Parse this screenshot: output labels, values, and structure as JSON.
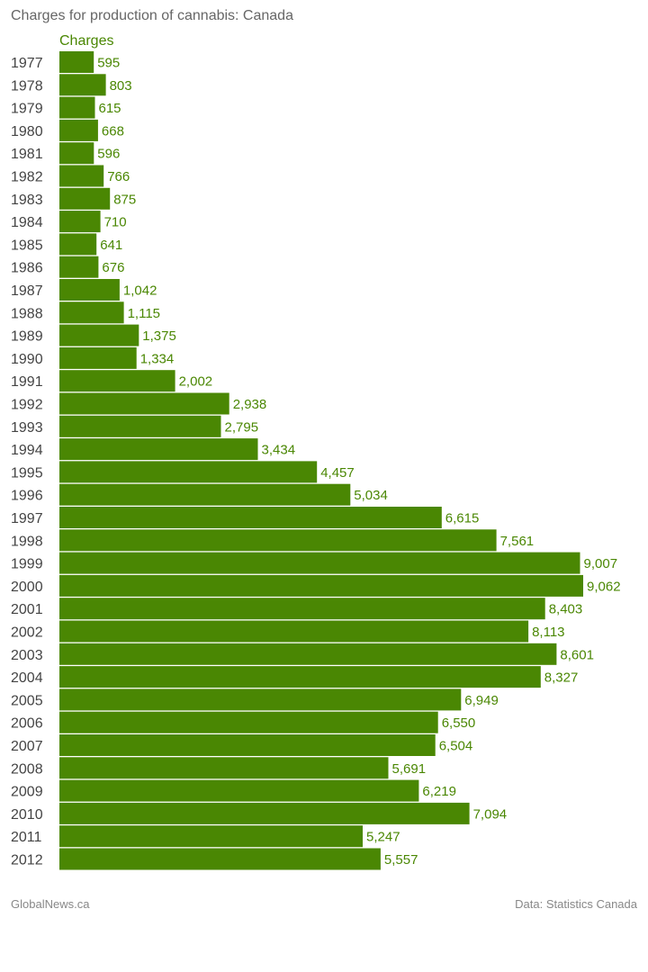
{
  "chart_data": {
    "type": "bar",
    "orientation": "horizontal",
    "title": "Charges for production of cannabis: Canada",
    "series": [
      {
        "name": "Charges",
        "values": [
          595,
          803,
          615,
          668,
          596,
          766,
          875,
          710,
          641,
          676,
          1042,
          1115,
          1375,
          1334,
          2002,
          2938,
          2795,
          3434,
          4457,
          5034,
          6615,
          7561,
          9007,
          9062,
          8403,
          8113,
          8601,
          8327,
          6949,
          6550,
          6504,
          5691,
          6219,
          7094,
          5247,
          5557
        ]
      }
    ],
    "categories": [
      "1977",
      "1978",
      "1979",
      "1980",
      "1981",
      "1982",
      "1983",
      "1984",
      "1985",
      "1986",
      "1987",
      "1988",
      "1989",
      "1990",
      "1991",
      "1992",
      "1993",
      "1994",
      "1995",
      "1996",
      "1997",
      "1998",
      "1999",
      "2000",
      "2001",
      "2002",
      "2003",
      "2004",
      "2005",
      "2006",
      "2007",
      "2008",
      "2009",
      "2010",
      "2011",
      "2012"
    ],
    "value_labels": [
      "595",
      "803",
      "615",
      "668",
      "596",
      "766",
      "875",
      "710",
      "641",
      "676",
      "1,042",
      "1,115",
      "1,375",
      "1,334",
      "2,002",
      "2,938",
      "2,795",
      "3,434",
      "4,457",
      "5,034",
      "6,615",
      "7,561",
      "9,007",
      "9,062",
      "8,403",
      "8,113",
      "8,601",
      "8,327",
      "6,949",
      "6,550",
      "6,504",
      "5,691",
      "6,219",
      "7,094",
      "5,247",
      "5,557"
    ],
    "xlim": [
      0,
      9062
    ],
    "grid": false,
    "legend_position": "top-left",
    "colors": {
      "bar": "#4a8703",
      "label": "#4a8703"
    }
  },
  "footer": {
    "source_left": "GlobalNews.ca",
    "source_right": "Data: Statistics Canada"
  }
}
